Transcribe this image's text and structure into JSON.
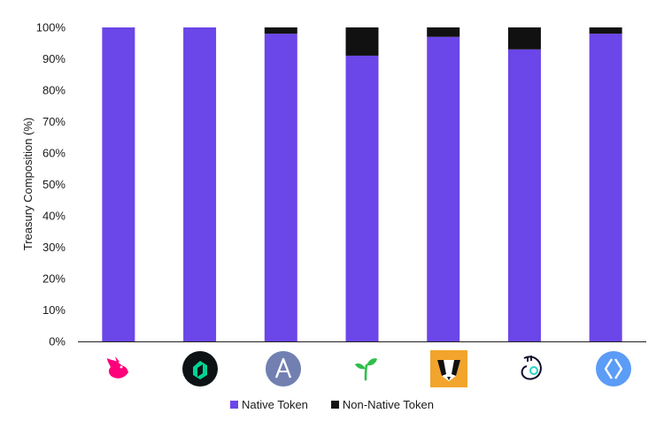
{
  "chart_data": {
    "type": "bar",
    "stacked": true,
    "categories": [
      "uniswap-logo",
      "compound-logo",
      "aave-logo",
      "sprout-logo",
      "badger-logo",
      "bitcoin-dao-logo",
      "ens-logo"
    ],
    "series": [
      {
        "name": "Native Token",
        "color": "#6b46e8",
        "values": [
          100,
          100,
          98,
          91,
          97,
          93,
          98
        ]
      },
      {
        "name": "Non-Native Token",
        "color": "#111111",
        "values": [
          0,
          0,
          2,
          9,
          3,
          7,
          2
        ]
      }
    ],
    "ylabel": "Treasury Composition (%)",
    "xlabel": "",
    "ylim": [
      0,
      100
    ],
    "yticks": [
      "0%",
      "10%",
      "20%",
      "30%",
      "40%",
      "50%",
      "60%",
      "70%",
      "80%",
      "90%",
      "100%"
    ],
    "legend_position": "bottom-center",
    "grid": false
  },
  "legend": {
    "native_label": "Native Token",
    "non_native_label": "Non-Native Token"
  }
}
